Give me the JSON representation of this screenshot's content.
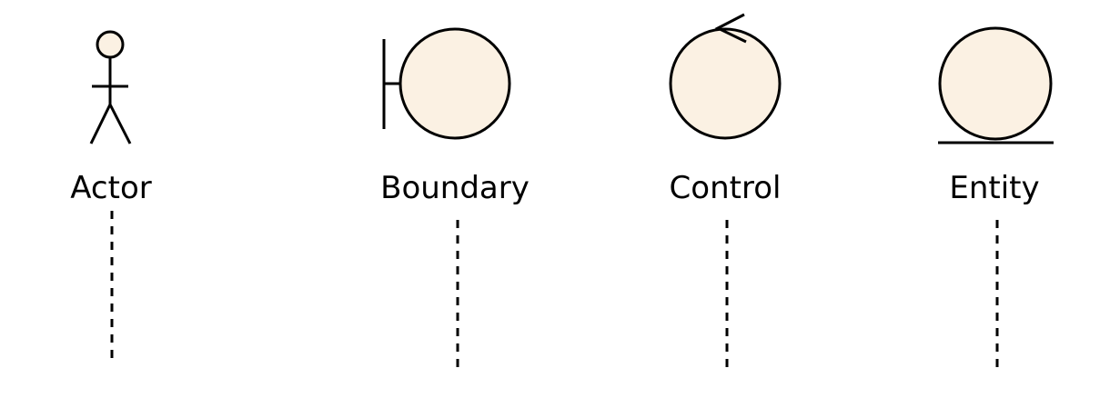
{
  "diagram": {
    "type": "UML robustness stereotypes with lifelines",
    "colors": {
      "shape_fill": "#fbf1e3",
      "stroke": "#000000",
      "background": "#ffffff"
    },
    "elements": [
      {
        "id": "actor",
        "label": "Actor",
        "icon": "stick-figure-icon"
      },
      {
        "id": "boundary",
        "label": "Boundary",
        "icon": "boundary-icon"
      },
      {
        "id": "control",
        "label": "Control",
        "icon": "control-icon"
      },
      {
        "id": "entity",
        "label": "Entity",
        "icon": "entity-icon"
      }
    ]
  }
}
